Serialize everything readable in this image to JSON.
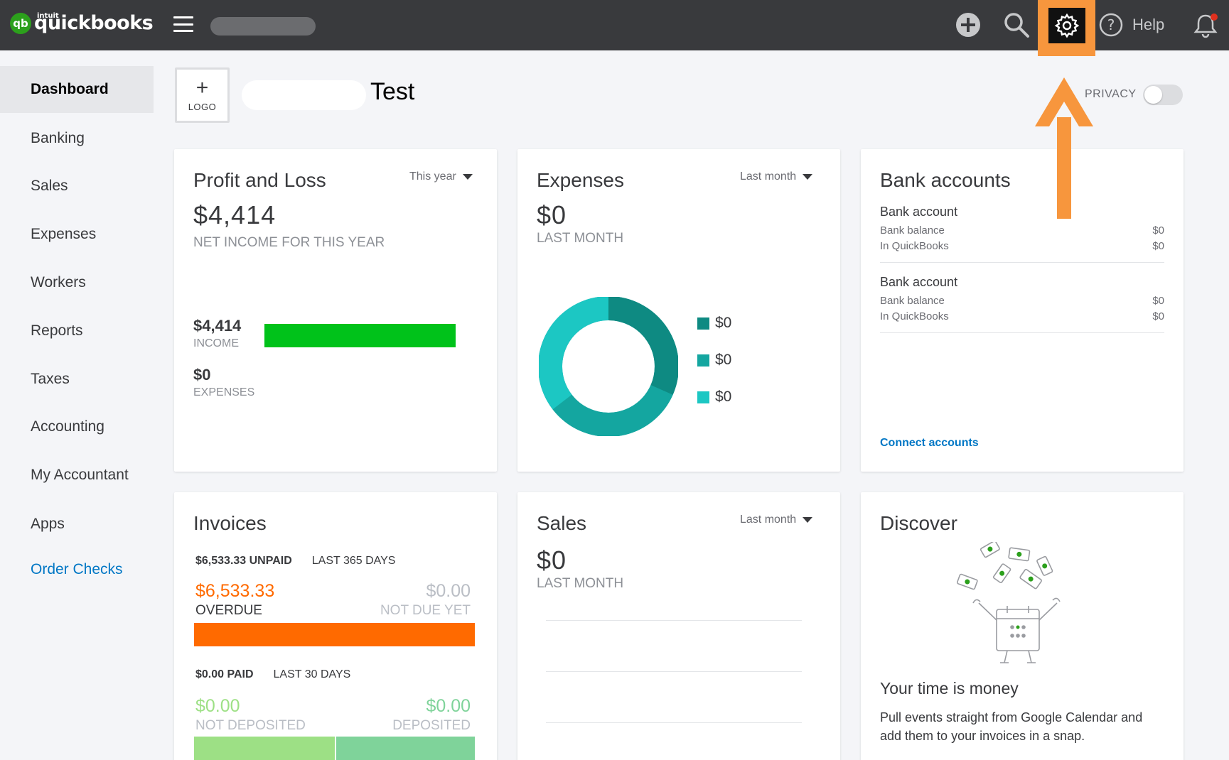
{
  "brand": {
    "intuit": "intuit",
    "name": "quickbooks",
    "mark": "qb"
  },
  "topbar": {
    "help_label": "Help"
  },
  "sidebar": {
    "items": [
      {
        "label": "Dashboard"
      },
      {
        "label": "Banking"
      },
      {
        "label": "Sales"
      },
      {
        "label": "Expenses"
      },
      {
        "label": "Workers"
      },
      {
        "label": "Reports"
      },
      {
        "label": "Taxes"
      },
      {
        "label": "Accounting"
      },
      {
        "label": "My Accountant"
      },
      {
        "label": "Apps"
      },
      {
        "label": "Order Checks"
      }
    ]
  },
  "header": {
    "logo_plus": "+",
    "logo_label": "LOGO",
    "company_name": "Test",
    "privacy_label": "PRIVACY"
  },
  "profit_loss": {
    "title": "Profit and Loss",
    "period": "This year",
    "net_income": "$4,414",
    "net_caption": "NET INCOME FOR THIS YEAR",
    "income_value": "$4,414",
    "income_label": "INCOME",
    "income_fraction": 1.0,
    "expenses_value": "$0",
    "expenses_label": "EXPENSES",
    "expenses_fraction": 0.0
  },
  "expenses": {
    "title": "Expenses",
    "period": "Last month",
    "amount": "$0",
    "caption": "LAST MONTH",
    "legend": [
      {
        "value": "$0",
        "color": "#0e8a82"
      },
      {
        "value": "$0",
        "color": "#14a6a0"
      },
      {
        "value": "$0",
        "color": "#1cc7c3"
      }
    ]
  },
  "bank_accounts": {
    "title": "Bank accounts",
    "accounts": [
      {
        "name": "Bank account",
        "bank_balance_label": "Bank balance",
        "bank_balance": "$0",
        "qb_label": "In QuickBooks",
        "qb_balance": "$0"
      },
      {
        "name": "Bank account",
        "bank_balance_label": "Bank balance",
        "bank_balance": "$0",
        "qb_label": "In QuickBooks",
        "qb_balance": "$0"
      }
    ],
    "connect_label": "Connect accounts"
  },
  "invoices": {
    "title": "Invoices",
    "unpaid_amount": "$6,533.33 UNPAID",
    "unpaid_period": "LAST 365 DAYS",
    "overdue_value": "$6,533.33",
    "overdue_label": "OVERDUE",
    "not_due_value": "$0.00",
    "not_due_label": "NOT DUE YET",
    "overdue_fraction": 1.0,
    "paid_amount": "$0.00 PAID",
    "paid_period": "LAST 30 DAYS",
    "not_deposited_value": "$0.00",
    "not_deposited_label": "NOT DEPOSITED",
    "deposited_value": "$0.00",
    "deposited_label": "DEPOSITED",
    "colors": {
      "overdue": "#ff6a00",
      "not_deposited": "#9de085",
      "deposited": "#7fd39a"
    }
  },
  "sales": {
    "title": "Sales",
    "period": "Last month",
    "amount": "$0",
    "caption": "LAST MONTH"
  },
  "discover": {
    "title": "Discover",
    "headline": "Your time is money",
    "body": "Pull events straight from Google Calendar and add them to your invoices in a snap."
  },
  "colors": {
    "brand_green": "#2ca01c",
    "highlight_orange": "#f7963d",
    "link_blue": "#0077c5",
    "income_green": "#00c21a"
  }
}
